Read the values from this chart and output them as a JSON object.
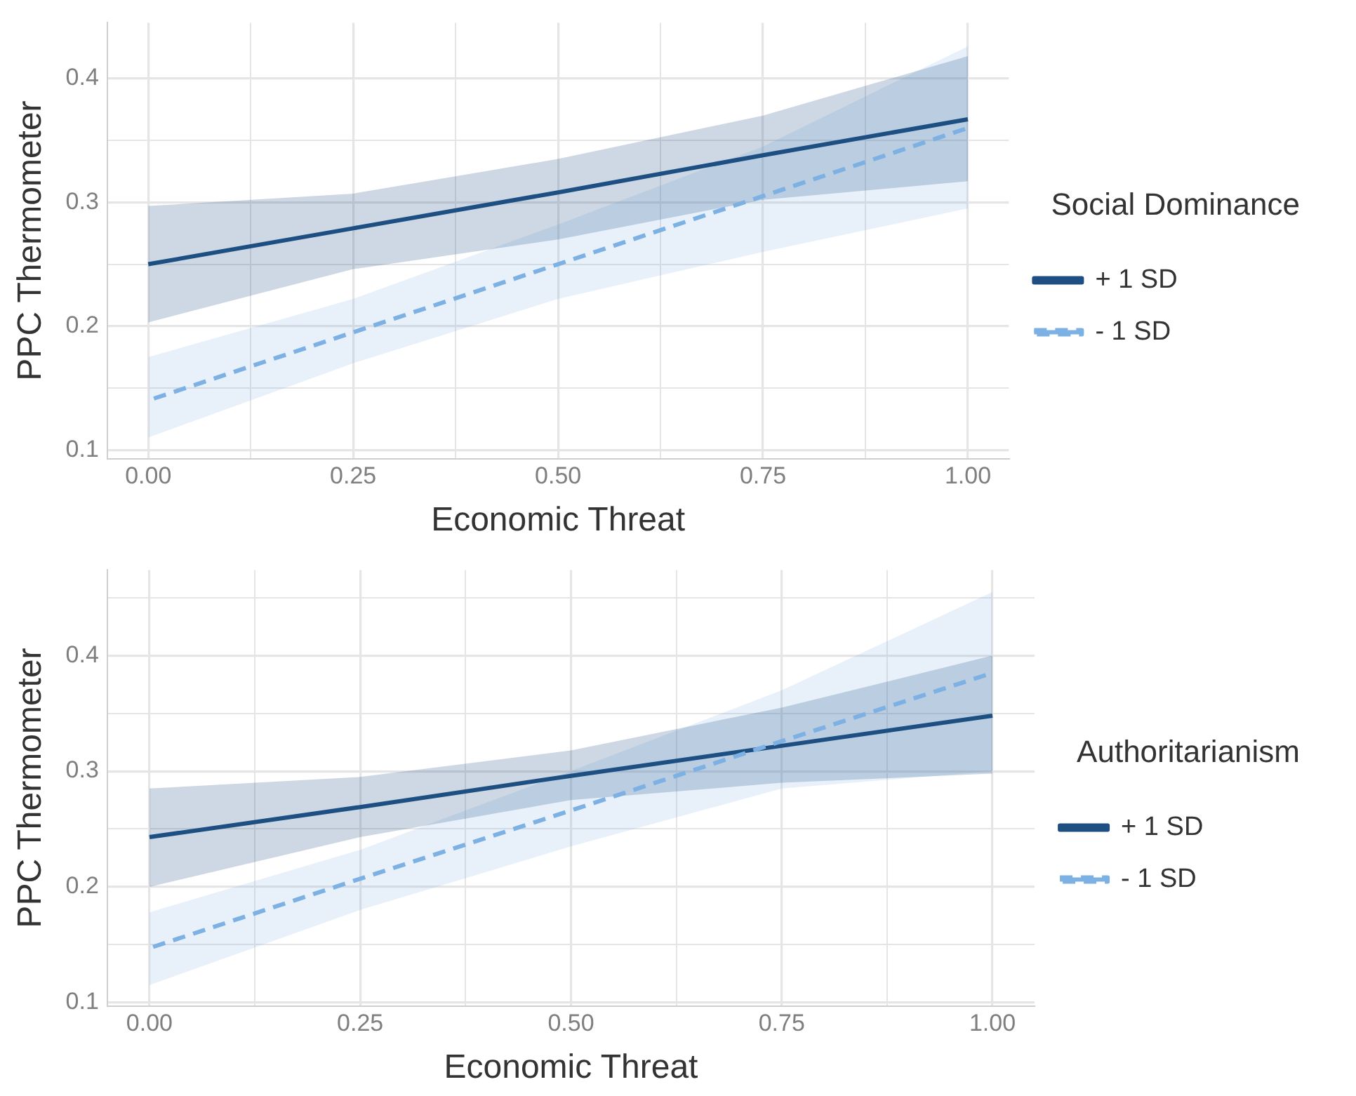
{
  "chart_data": [
    {
      "type": "line",
      "xlabel": "Economic Threat",
      "ylabel": "PPC Thermometer",
      "legend_title": "Social Dominance",
      "legend": "right",
      "grid": true,
      "marker": "none",
      "xlim": [
        -0.05,
        1.05
      ],
      "ylim": [
        0.093,
        0.445
      ],
      "xticks": [
        {
          "value": 0,
          "label": "0.00"
        },
        {
          "value": 0.125,
          "label": null
        },
        {
          "value": 0.25,
          "label": "0.25"
        },
        {
          "value": 0.375,
          "label": null
        },
        {
          "value": 0.5,
          "label": "0.50"
        },
        {
          "value": 0.625,
          "label": null
        },
        {
          "value": 0.75,
          "label": "0.75"
        },
        {
          "value": 0.875,
          "label": null
        },
        {
          "value": 1,
          "label": "1.00"
        }
      ],
      "yticks": [
        0.1,
        {
          "value": 0.15,
          "label": null
        },
        0.2,
        {
          "value": 0.25,
          "label": null
        },
        0.3,
        {
          "value": 0.35,
          "label": null
        },
        0.4
      ],
      "x": [
        0,
        0.25,
        0.5,
        0.75,
        1
      ],
      "series": [
        {
          "name": "+ 1 SD",
          "color": "#1d4f82",
          "line_style": "solid",
          "values": [
            0.25,
            0.279,
            0.308,
            0.338,
            0.367
          ],
          "lower": [
            0.203,
            0.246,
            0.27,
            0.302,
            0.317
          ],
          "upper": [
            0.297,
            0.307,
            0.335,
            0.37,
            0.418
          ]
        },
        {
          "name": "- 1 SD",
          "color": "#7db1e3",
          "line_style": "dashed",
          "values": [
            0.14,
            0.195,
            0.25,
            0.305,
            0.36
          ],
          "lower": [
            0.11,
            0.17,
            0.222,
            0.26,
            0.295
          ],
          "upper": [
            0.175,
            0.222,
            0.282,
            0.345,
            0.426
          ]
        }
      ]
    },
    {
      "type": "line",
      "xlabel": "Economic Threat",
      "ylabel": "PPC Thermometer",
      "legend_title": "Authoritarianism",
      "legend": "right",
      "grid": true,
      "marker": "none",
      "xlim": [
        -0.05,
        1.05
      ],
      "ylim": [
        0.097,
        0.474
      ],
      "xticks": [
        {
          "value": 0,
          "label": "0.00"
        },
        {
          "value": 0.125,
          "label": null
        },
        {
          "value": 0.25,
          "label": "0.25"
        },
        {
          "value": 0.375,
          "label": null
        },
        {
          "value": 0.5,
          "label": "0.50"
        },
        {
          "value": 0.625,
          "label": null
        },
        {
          "value": 0.75,
          "label": "0.75"
        },
        {
          "value": 0.875,
          "label": null
        },
        {
          "value": 1,
          "label": "1.00"
        }
      ],
      "yticks": [
        0.1,
        {
          "value": 0.15,
          "label": null
        },
        0.2,
        {
          "value": 0.25,
          "label": null
        },
        0.3,
        {
          "value": 0.35,
          "label": null
        },
        0.4,
        {
          "value": 0.45,
          "label": null
        }
      ],
      "x": [
        0,
        0.25,
        0.5,
        0.75,
        1
      ],
      "series": [
        {
          "name": "+ 1 SD",
          "color": "#1d4f82",
          "line_style": "solid",
          "values": [
            0.243,
            0.269,
            0.296,
            0.322,
            0.348
          ],
          "lower": [
            0.2,
            0.243,
            0.275,
            0.29,
            0.298
          ],
          "upper": [
            0.285,
            0.295,
            0.318,
            0.355,
            0.4
          ]
        },
        {
          "name": "- 1 SD",
          "color": "#7db1e3",
          "line_style": "dashed",
          "values": [
            0.147,
            0.207,
            0.266,
            0.326,
            0.385
          ],
          "lower": [
            0.115,
            0.18,
            0.235,
            0.285,
            0.3
          ],
          "upper": [
            0.178,
            0.232,
            0.3,
            0.37,
            0.455
          ]
        }
      ]
    }
  ]
}
